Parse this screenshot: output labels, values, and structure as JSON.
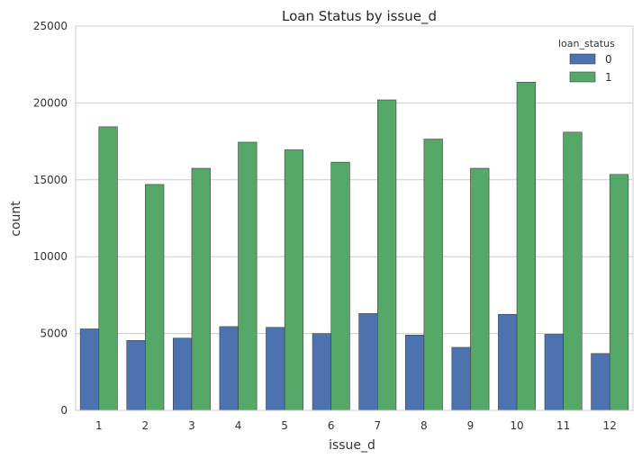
{
  "chart_data": {
    "type": "bar",
    "title": "Loan Status by issue_d",
    "xlabel": "issue_d",
    "ylabel": "count",
    "categories": [
      "1",
      "2",
      "3",
      "4",
      "5",
      "6",
      "7",
      "8",
      "9",
      "10",
      "11",
      "12"
    ],
    "ylim": [
      0,
      25000
    ],
    "yticks": [
      "0",
      "5000",
      "10000",
      "15000",
      "20000",
      "25000"
    ],
    "grid": "horizontal",
    "legend": {
      "title": "loan_status",
      "placement": "top-right"
    },
    "series": [
      {
        "name": "0",
        "color": "#4c72b0",
        "values": [
          5300,
          4550,
          4700,
          5450,
          5400,
          5000,
          6300,
          4900,
          4100,
          6250,
          4950,
          3700
        ]
      },
      {
        "name": "1",
        "color": "#55a868",
        "values": [
          18450,
          14700,
          15750,
          17450,
          16950,
          16150,
          20200,
          17650,
          15750,
          21350,
          18100,
          15350
        ]
      }
    ]
  }
}
